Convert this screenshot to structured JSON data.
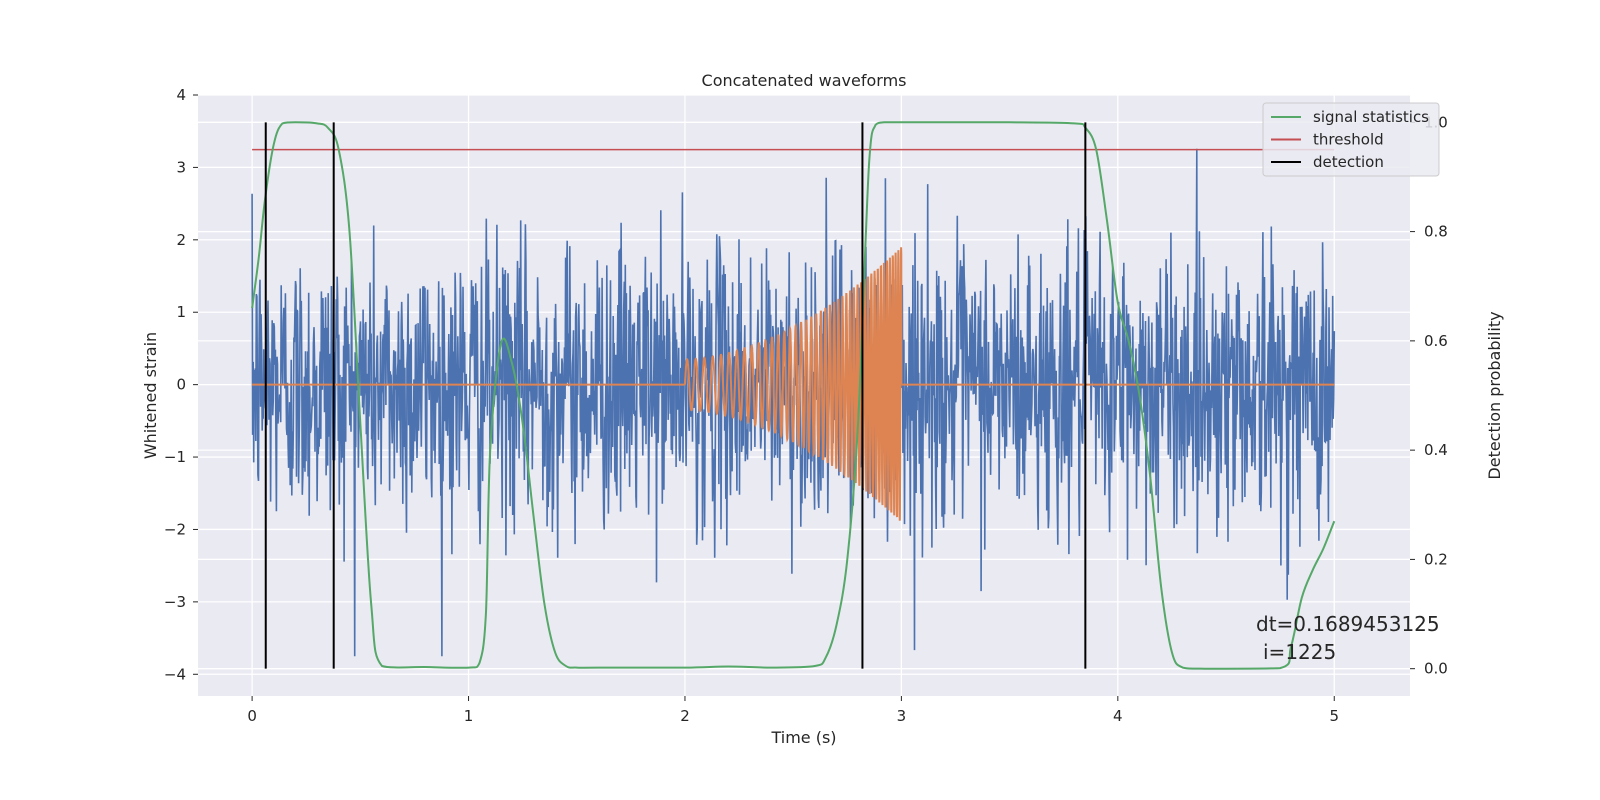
{
  "chart_data": {
    "type": "line",
    "title": "Concatenated waveforms",
    "xlabel": "Time (s)",
    "ylabel": "Whitened strain",
    "y2label": "Detection probability",
    "xlim": [
      -0.25,
      5.35
    ],
    "ylim": [
      -4.3,
      4.0
    ],
    "y2lim": [
      -0.05,
      1.05
    ],
    "x_ticks": [
      0,
      1,
      2,
      3,
      4,
      5
    ],
    "y_ticks": [
      -4,
      -3,
      -2,
      -1,
      0,
      1,
      2,
      3,
      4
    ],
    "y2_ticks": [
      0.0,
      0.2,
      0.4,
      0.6,
      0.8,
      1.0
    ],
    "x_tick_labels": [
      "0",
      "1",
      "2",
      "3",
      "4",
      "5"
    ],
    "y_tick_labels": [
      "−4",
      "−3",
      "−2",
      "−1",
      "0",
      "1",
      "2",
      "3",
      "4"
    ],
    "y2_tick_labels": [
      "0.0",
      "0.2",
      "0.4",
      "0.6",
      "0.8",
      "1.0"
    ],
    "grid": true,
    "legend": {
      "placement": "top-right",
      "entries": [
        {
          "label": "signal statistics",
          "color": "#55a868"
        },
        {
          "label": "threshold",
          "color": "#c44e52"
        },
        {
          "label": "detection",
          "color": "#000000"
        }
      ]
    },
    "annotation": {
      "line1": "dt=0.1689453125",
      "line2": "i=1225"
    },
    "series": [
      {
        "role": "noisy strain",
        "axis": "left",
        "color": "#4c72b0",
        "x_range": [
          0,
          5
        ],
        "samples": 2048,
        "amplitude_envelope": [
          -3.75,
          3.6
        ]
      },
      {
        "role": "injected chirp",
        "axis": "left",
        "color": "#dd8452",
        "flat": [
          [
            0,
            2
          ],
          [
            3,
            5
          ]
        ],
        "chirp": {
          "start": 2.0,
          "end": 3.0,
          "amp_start": 0.35,
          "amp_end": 1.9,
          "freq_start": 25,
          "freq_end": 80
        }
      },
      {
        "name": "signal statistics",
        "axis": "right",
        "color": "#55a868",
        "x": [
          0,
          0.03,
          0.06,
          0.1,
          0.14,
          0.2,
          0.3,
          0.35,
          0.4,
          0.45,
          0.5,
          0.55,
          0.6,
          0.8,
          1.0,
          1.05,
          1.08,
          1.1,
          1.15,
          1.2,
          1.25,
          1.3,
          1.35,
          1.4,
          1.45,
          1.5,
          1.6,
          2.0,
          2.2,
          2.4,
          2.6,
          2.65,
          2.7,
          2.75,
          2.8,
          2.85,
          2.88,
          2.92,
          3.0,
          3.5,
          3.8,
          3.85,
          3.9,
          3.95,
          4.0,
          4.05,
          4.1,
          4.15,
          4.2,
          4.25,
          4.3,
          4.4,
          4.75,
          4.8,
          4.85,
          4.9,
          4.95,
          5.0
        ],
        "y": [
          0.66,
          0.75,
          0.86,
          0.96,
          0.998,
          1.0,
          0.998,
          0.99,
          0.95,
          0.8,
          0.45,
          0.12,
          0.005,
          0.003,
          0.002,
          0.01,
          0.1,
          0.4,
          0.595,
          0.56,
          0.45,
          0.28,
          0.12,
          0.03,
          0.005,
          0.002,
          0.002,
          0.002,
          0.004,
          0.002,
          0.005,
          0.02,
          0.08,
          0.2,
          0.45,
          0.92,
          0.995,
          1.0,
          1.0,
          1.0,
          0.998,
          0.99,
          0.95,
          0.82,
          0.67,
          0.6,
          0.5,
          0.35,
          0.15,
          0.03,
          0.002,
          0.0,
          0.001,
          0.04,
          0.13,
          0.18,
          0.22,
          0.27
        ]
      },
      {
        "name": "threshold",
        "axis": "right",
        "color": "#c44e52",
        "x": [
          0,
          5
        ],
        "y": [
          0.95,
          0.95
        ]
      },
      {
        "name": "detection",
        "axis": "right",
        "color": "#000000",
        "vlines_x": [
          0.063,
          0.377,
          2.82,
          3.85
        ],
        "vline_range": [
          0.0,
          1.0
        ]
      }
    ]
  }
}
